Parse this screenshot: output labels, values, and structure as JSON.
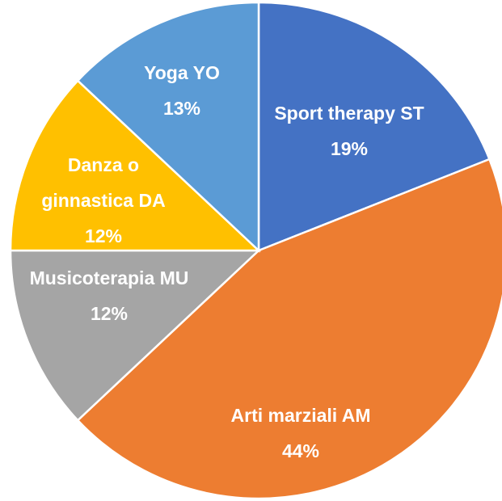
{
  "chart_data": {
    "type": "pie",
    "categories": [
      "Sport therapy ST",
      "Arti marziali  AM",
      "Musicoterapia MU",
      "Danza o ginnastica  DA",
      "Yoga YO"
    ],
    "values": [
      19,
      44,
      12,
      12,
      13
    ],
    "value_labels": [
      "19%",
      "44%",
      "12%",
      "12%",
      "13%"
    ],
    "colors": [
      "#4472c4",
      "#ed7d31",
      "#a5a5a5",
      "#ffc000",
      "#5b9bd5"
    ]
  }
}
